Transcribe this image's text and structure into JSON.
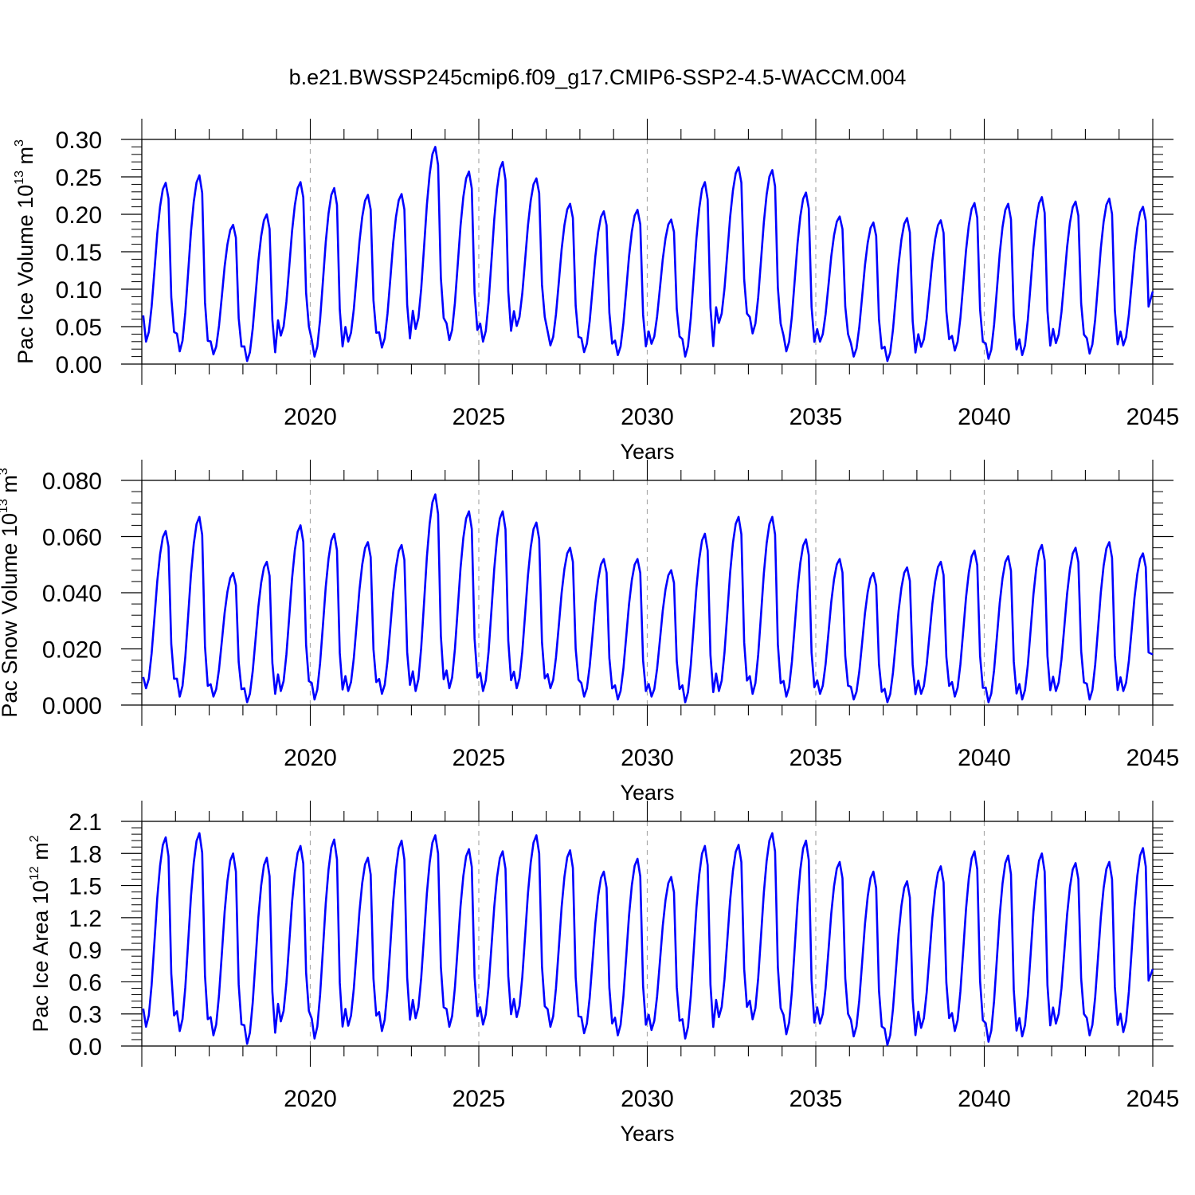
{
  "title": "b.e21.BWSSP245cmip6.f09_g17.CMIP6-SSP2-4.5-WACCM.004",
  "chart_data": [
    {
      "type": "line",
      "ylabel": {
        "main": "Pac Ice Volume 10",
        "exp": "13",
        "unit": " m",
        "unitexp": "3"
      },
      "xlabel": "Years",
      "xlim": [
        2015.0,
        2045.0
      ],
      "ylim": [
        0.0,
        0.3
      ],
      "yticks": [
        0.0,
        0.05,
        0.1,
        0.15,
        0.2,
        0.25,
        0.3
      ],
      "ytick_labels": [
        "0.00",
        "0.05",
        "0.10",
        "0.15",
        "0.20",
        "0.25",
        "0.30"
      ],
      "xticks": [
        2020,
        2025,
        2030,
        2035,
        2040,
        2045
      ],
      "xtick_labels": [
        "2020",
        "2025",
        "2030",
        "2035",
        "2040",
        "2045"
      ],
      "grid": "dashed vertical at major x ticks",
      "series": [
        {
          "name": "Pac Ice Volume",
          "color": "#0000ff",
          "annual_max": [
            0.242,
            0.252,
            0.186,
            0.2,
            0.243,
            0.235,
            0.226,
            0.227,
            0.29,
            0.257,
            0.27,
            0.248,
            0.214,
            0.204,
            0.206,
            0.193,
            0.243,
            0.263,
            0.259,
            0.229,
            0.197,
            0.189,
            0.195,
            0.192,
            0.215,
            0.214,
            0.223,
            0.217,
            0.221,
            0.21
          ],
          "annual_min": [
            0.03,
            0.017,
            0.013,
            0.004,
            0.038,
            0.01,
            0.03,
            0.022,
            0.047,
            0.032,
            0.03,
            0.051,
            0.025,
            0.016,
            0.012,
            0.027,
            0.01,
            0.055,
            0.041,
            0.017,
            0.03,
            0.01,
            0.004,
            0.023,
            0.018,
            0.007,
            0.012,
            0.028,
            0.014,
            0.025
          ],
          "start_value": 0.065,
          "end_value": 0.097
        }
      ]
    },
    {
      "type": "line",
      "ylabel": {
        "main": "Pac Snow Volume 10",
        "exp": "13",
        "unit": " m",
        "unitexp": "3"
      },
      "xlabel": "Years",
      "xlim": [
        2015.0,
        2045.0
      ],
      "ylim": [
        0.0,
        0.08
      ],
      "yticks": [
        0.0,
        0.02,
        0.04,
        0.06,
        0.08
      ],
      "ytick_labels": [
        "0.000",
        "0.020",
        "0.040",
        "0.060",
        "0.080"
      ],
      "xticks": [
        2020,
        2025,
        2030,
        2035,
        2040,
        2045
      ],
      "xtick_labels": [
        "2020",
        "2025",
        "2030",
        "2035",
        "2040",
        "2045"
      ],
      "grid": "dashed vertical at major x ticks",
      "series": [
        {
          "name": "Pac Snow Volume",
          "color": "#0000ff",
          "annual_max": [
            0.062,
            0.067,
            0.047,
            0.051,
            0.064,
            0.061,
            0.058,
            0.057,
            0.075,
            0.069,
            0.069,
            0.065,
            0.056,
            0.052,
            0.052,
            0.048,
            0.061,
            0.067,
            0.067,
            0.059,
            0.052,
            0.047,
            0.049,
            0.051,
            0.055,
            0.053,
            0.057,
            0.056,
            0.058,
            0.054
          ],
          "annual_min": [
            0.006,
            0.003,
            0.003,
            0.001,
            0.005,
            0.002,
            0.005,
            0.004,
            0.005,
            0.006,
            0.005,
            0.006,
            0.006,
            0.003,
            0.002,
            0.003,
            0.001,
            0.005,
            0.004,
            0.003,
            0.004,
            0.002,
            0.001,
            0.004,
            0.003,
            0.001,
            0.002,
            0.005,
            0.002,
            0.005
          ],
          "start_value": 0.01,
          "end_value": 0.018
        }
      ]
    },
    {
      "type": "line",
      "ylabel": {
        "main": "Pac Ice Area 10",
        "exp": "12",
        "unit": " m",
        "unitexp": "2"
      },
      "xlabel": "Years",
      "xlim": [
        2015.0,
        2045.0
      ],
      "ylim": [
        0.0,
        2.1
      ],
      "yticks": [
        0.0,
        0.3,
        0.6,
        0.9,
        1.2,
        1.5,
        1.8,
        2.1
      ],
      "ytick_labels": [
        "0.0",
        "0.3",
        "0.6",
        "0.9",
        "1.2",
        "1.5",
        "1.8",
        "2.1"
      ],
      "xticks": [
        2020,
        2025,
        2030,
        2035,
        2040,
        2045
      ],
      "xtick_labels": [
        "2020",
        "2025",
        "2030",
        "2035",
        "2040",
        "2045"
      ],
      "grid": "dashed vertical at major x ticks",
      "series": [
        {
          "name": "Pac Ice Area",
          "color": "#0000ff",
          "annual_max": [
            1.95,
            1.99,
            1.8,
            1.76,
            1.87,
            1.93,
            1.76,
            1.92,
            1.97,
            1.84,
            1.82,
            1.97,
            1.83,
            1.63,
            1.75,
            1.58,
            1.87,
            1.88,
            1.99,
            1.92,
            1.72,
            1.63,
            1.54,
            1.68,
            1.82,
            1.78,
            1.8,
            1.71,
            1.72,
            1.85
          ],
          "annual_min": [
            0.18,
            0.14,
            0.1,
            0.02,
            0.23,
            0.07,
            0.19,
            0.14,
            0.26,
            0.18,
            0.2,
            0.27,
            0.18,
            0.12,
            0.1,
            0.15,
            0.07,
            0.27,
            0.25,
            0.11,
            0.21,
            0.09,
            0.01,
            0.17,
            0.14,
            0.04,
            0.09,
            0.21,
            0.1,
            0.13
          ],
          "start_value": 0.35,
          "end_value": 0.72
        }
      ]
    }
  ]
}
